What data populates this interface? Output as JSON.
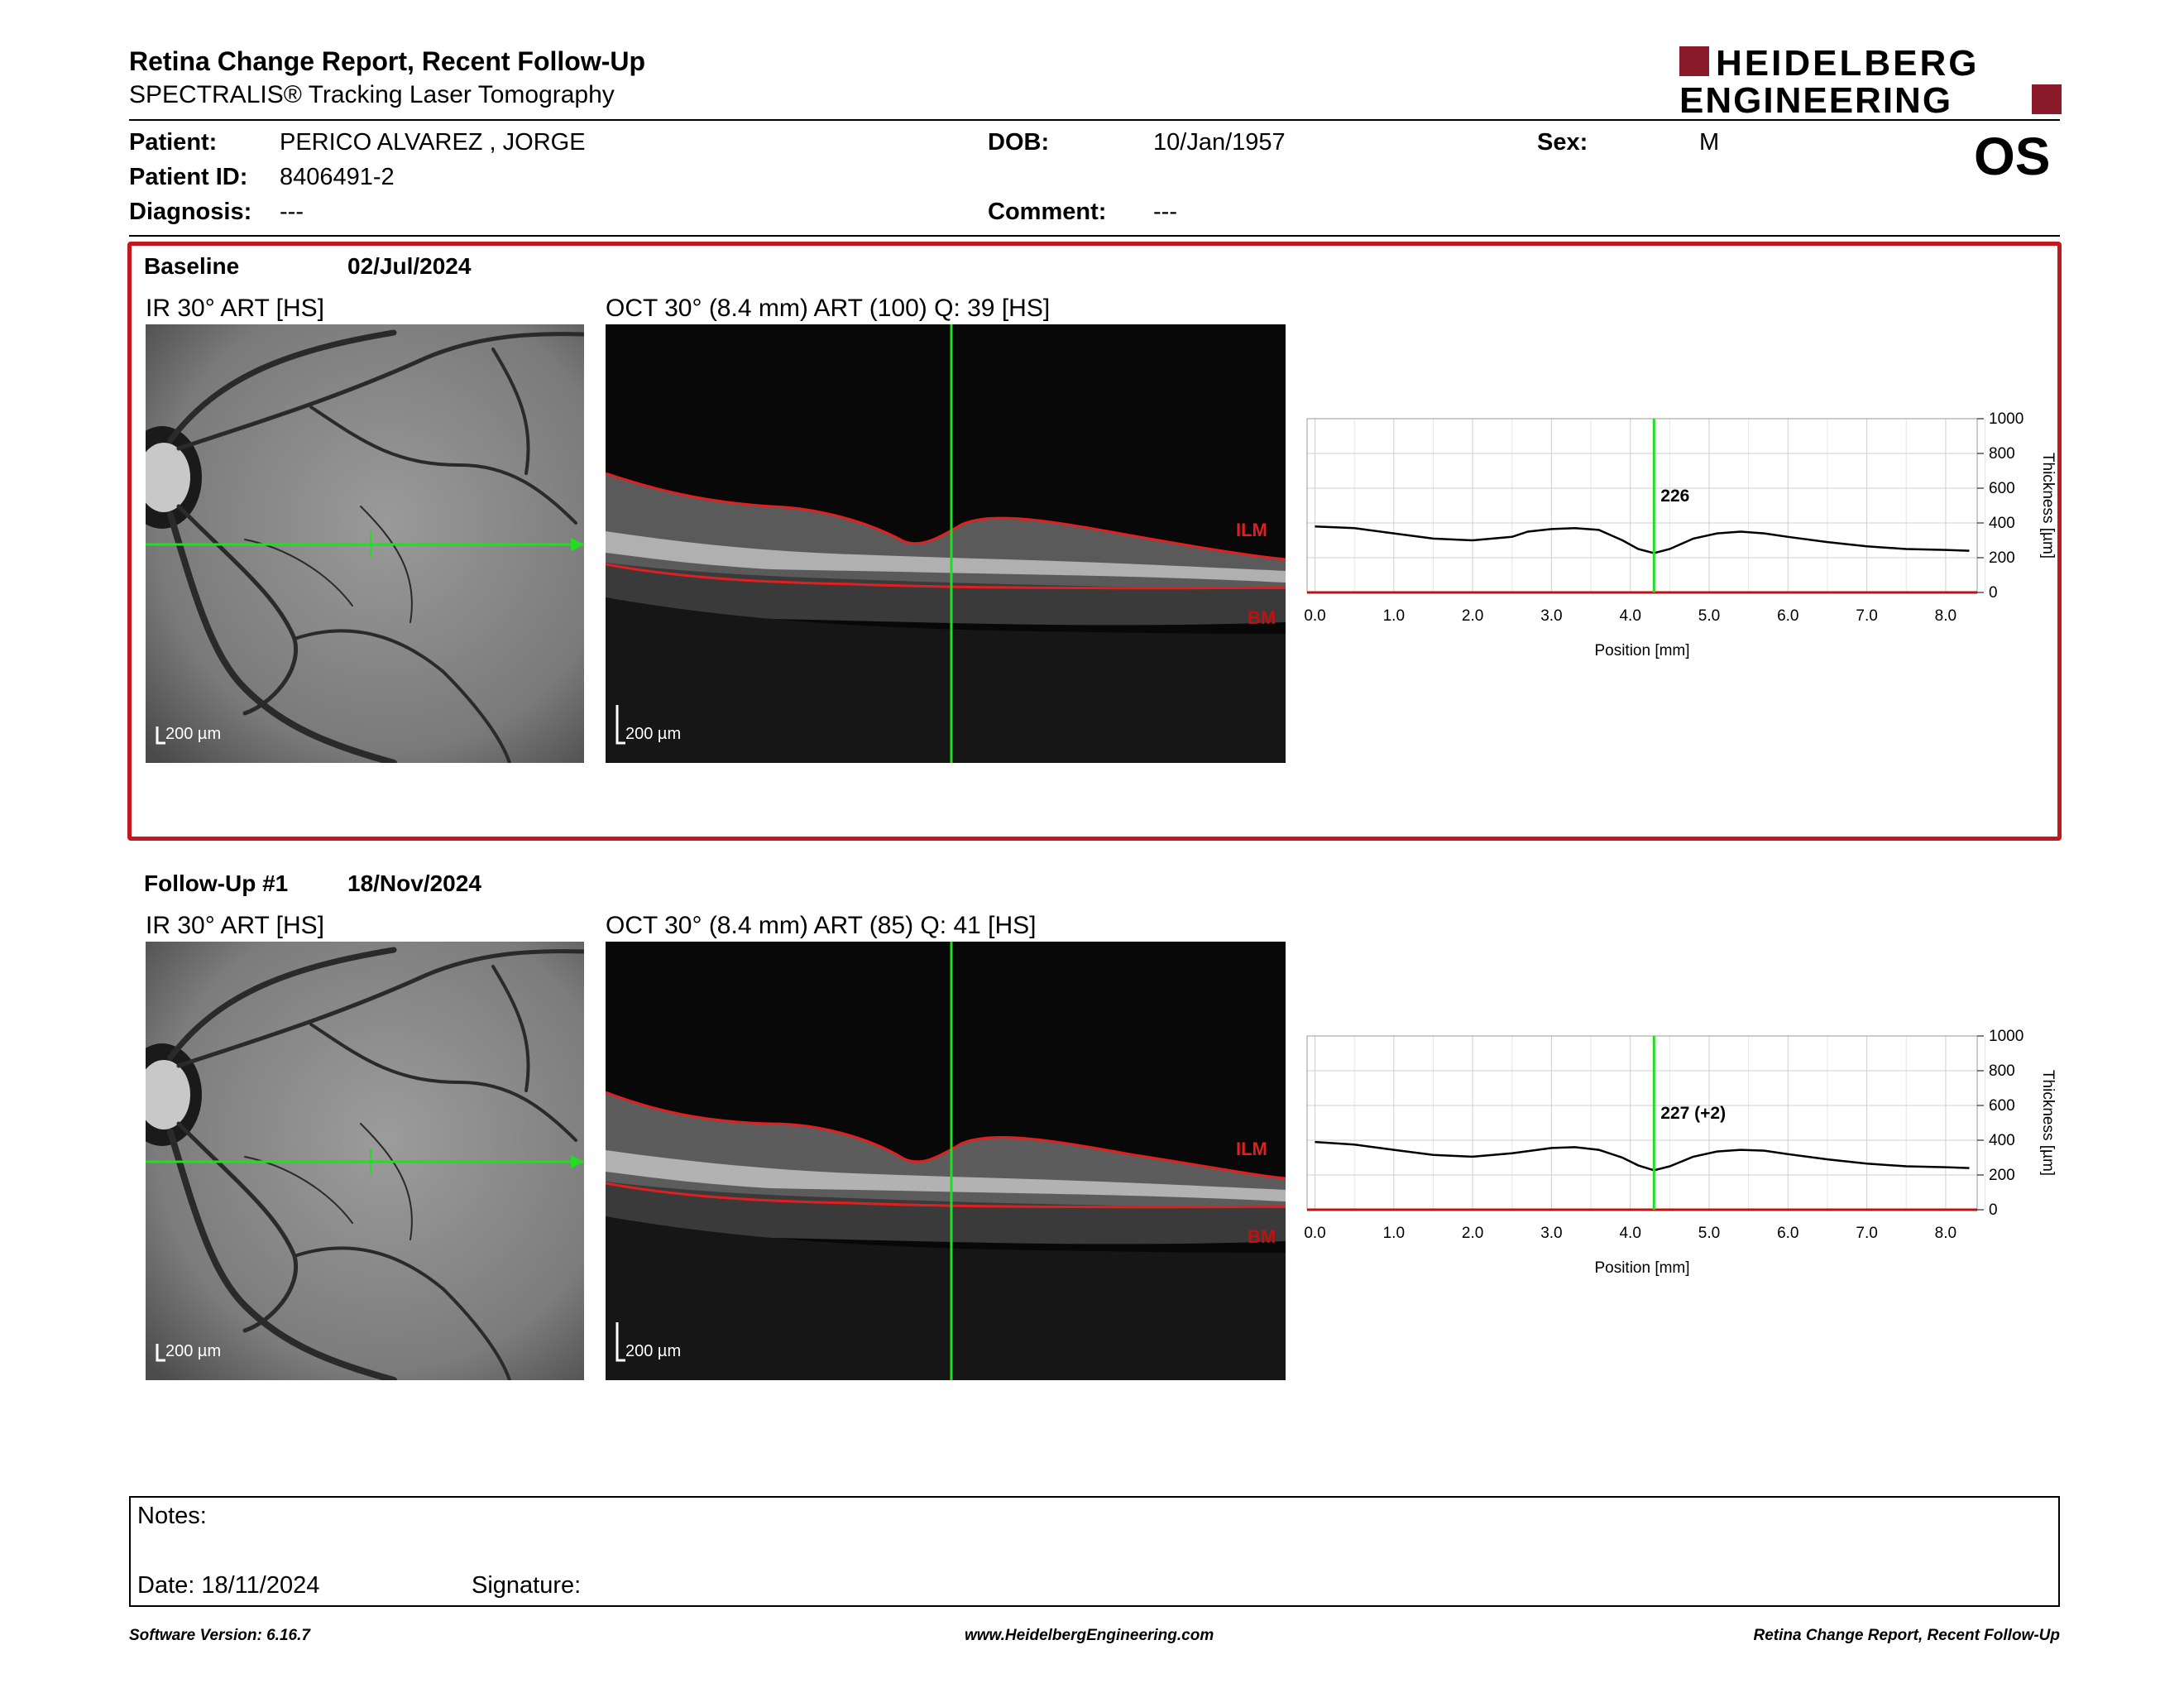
{
  "header": {
    "title": "Retina Change Report, Recent Follow-Up",
    "subtitle": "SPECTRALIS® Tracking Laser Tomography",
    "logo_line1": "HEIDELBERG",
    "logo_line2": "ENGINEERING",
    "brand_color": "#8b1a2b"
  },
  "patient": {
    "patient_label": "Patient:",
    "patient_name": "PERICO ALVAREZ , JORGE",
    "id_label": "Patient ID:",
    "id_value": "8406491-2",
    "diagnosis_label": "Diagnosis:",
    "diagnosis_value": "---",
    "dob_label": "DOB:",
    "dob_value": "10/Jan/1957",
    "comment_label": "Comment:",
    "comment_value": "---",
    "sex_label": "Sex:",
    "sex_value": "M",
    "eye": "OS"
  },
  "baseline": {
    "label": "Baseline",
    "date": "02/Jul/2024",
    "ir_title": "IR 30° ART [HS]",
    "oct_title": "OCT 30° (8.4 mm) ART (100) Q: 39 [HS]",
    "ir_scale": "200 µm",
    "oct_scale": "200 µm",
    "ilm_label": "ILM",
    "bm_label": "BM"
  },
  "followup": {
    "label": "Follow-Up #1",
    "date": "18/Nov/2024",
    "ir_title": "IR 30° ART [HS]",
    "oct_title": "OCT 30° (8.4 mm) ART (85) Q: 41 [HS]",
    "ir_scale": "200 µm",
    "oct_scale": "200 µm",
    "ilm_label": "ILM",
    "bm_label": "BM"
  },
  "chart_data": [
    {
      "type": "line",
      "xlabel": "Position [mm]",
      "ylabel": "Thickness [µm]",
      "xlim": [
        -0.1,
        8.4
      ],
      "ylim": [
        0,
        1000
      ],
      "xticks": [
        "0.0",
        "1.0",
        "2.0",
        "3.0",
        "4.0",
        "5.0",
        "6.0",
        "7.0",
        "8.0"
      ],
      "yticks": [
        "0",
        "200",
        "400",
        "600",
        "800",
        "1000"
      ],
      "grid": true,
      "marker_x": 4.3,
      "marker_label": "226",
      "x": [
        0.0,
        0.5,
        1.0,
        1.5,
        2.0,
        2.5,
        2.7,
        3.0,
        3.3,
        3.6,
        3.9,
        4.1,
        4.3,
        4.5,
        4.8,
        5.1,
        5.4,
        5.7,
        6.0,
        6.5,
        7.0,
        7.5,
        8.0,
        8.3
      ],
      "y": [
        380,
        370,
        340,
        310,
        300,
        320,
        350,
        365,
        370,
        360,
        300,
        250,
        226,
        250,
        310,
        340,
        350,
        340,
        320,
        290,
        265,
        250,
        245,
        240
      ]
    },
    {
      "type": "line",
      "xlabel": "Position [mm]",
      "ylabel": "Thickness [µm]",
      "xlim": [
        -0.1,
        8.4
      ],
      "ylim": [
        0,
        1000
      ],
      "xticks": [
        "0.0",
        "1.0",
        "2.0",
        "3.0",
        "4.0",
        "5.0",
        "6.0",
        "7.0",
        "8.0"
      ],
      "yticks": [
        "0",
        "200",
        "400",
        "600",
        "800",
        "1000"
      ],
      "grid": true,
      "marker_x": 4.3,
      "marker_label": "227 (+2)",
      "x": [
        0.0,
        0.5,
        1.0,
        1.5,
        2.0,
        2.5,
        3.0,
        3.3,
        3.6,
        3.9,
        4.1,
        4.3,
        4.5,
        4.8,
        5.1,
        5.4,
        5.7,
        6.0,
        6.5,
        7.0,
        7.5,
        8.0,
        8.3
      ],
      "y": [
        390,
        375,
        345,
        315,
        305,
        325,
        355,
        360,
        345,
        300,
        255,
        227,
        250,
        305,
        335,
        345,
        340,
        320,
        290,
        265,
        250,
        245,
        240
      ]
    }
  ],
  "notes": {
    "notes_label": "Notes:",
    "date_label": "Date: 18/11/2024",
    "signature_label": "Signature:"
  },
  "footer": {
    "left": "Software Version: 6.16.7",
    "center": "www.HeidelbergEngineering.com",
    "right": "Retina Change Report, Recent Follow-Up"
  }
}
